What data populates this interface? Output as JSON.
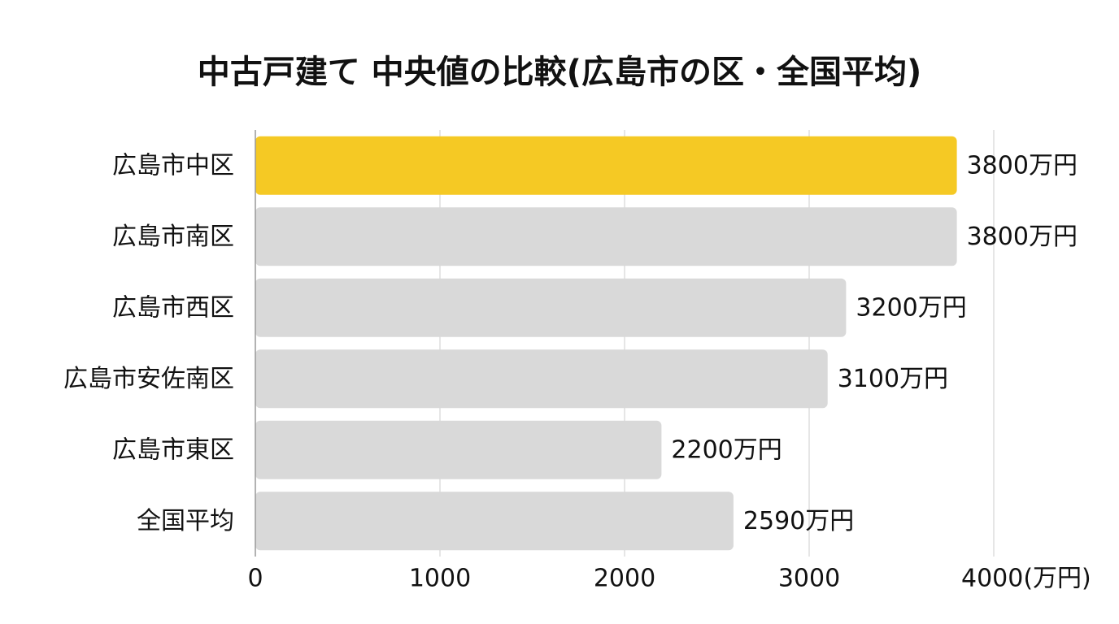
{
  "chart_data": {
    "type": "bar",
    "orientation": "horizontal",
    "title": "中古戸建て 中央値の比較(広島市の区・全国平均)",
    "categories": [
      "広島市中区",
      "広島市南区",
      "広島市西区",
      "広島市安佐南区",
      "広島市東区",
      "全国平均"
    ],
    "values": [
      3800,
      3800,
      3200,
      3100,
      2200,
      2590
    ],
    "value_labels": [
      "3800万円",
      "3800万円",
      "3200万円",
      "3100万円",
      "2200万円",
      "2590万円"
    ],
    "highlight_index": 0,
    "xlim": [
      0,
      4000
    ],
    "x_ticks": [
      0,
      1000,
      2000,
      3000,
      4000
    ],
    "x_tick_labels": [
      "0",
      "1000",
      "2000",
      "3000",
      "4000(万円)"
    ],
    "grid": true,
    "colors": {
      "highlight": "#F5C924",
      "default": "#D9D9D9",
      "grid": "#DDDDDD",
      "axis": "#999999",
      "text": "#111111"
    }
  }
}
